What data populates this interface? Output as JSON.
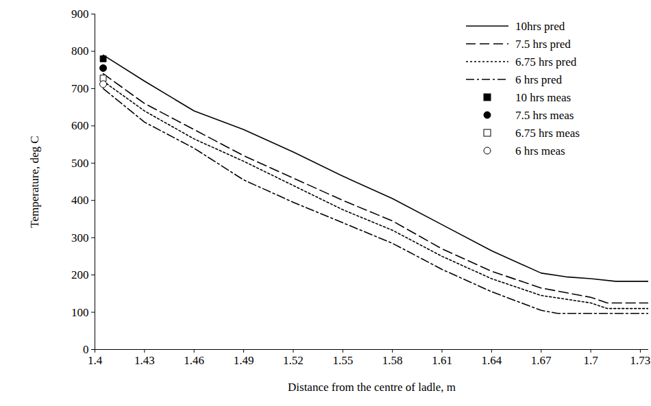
{
  "chart_data": {
    "type": "line",
    "x_label": "Distance from the centre of ladle, m",
    "y_label": "Temperature, deg C",
    "xlim": [
      1.4,
      1.735
    ],
    "xticks": [
      1.4,
      1.43,
      1.46,
      1.49,
      1.52,
      1.55,
      1.58,
      1.61,
      1.64,
      1.67,
      1.7,
      1.73
    ],
    "ylim": [
      0,
      900
    ],
    "yticks": [
      0,
      100,
      200,
      300,
      400,
      500,
      600,
      700,
      800,
      900
    ],
    "grid": false,
    "legend": "top-right",
    "series": [
      {
        "name": "10hrs pred",
        "type": "line",
        "color": "#000000",
        "line_style": "solid",
        "x": [
          1.405,
          1.43,
          1.46,
          1.49,
          1.52,
          1.55,
          1.58,
          1.61,
          1.64,
          1.67,
          1.685,
          1.7,
          1.715,
          1.735
        ],
        "values": [
          790,
          720,
          640,
          590,
          530,
          465,
          405,
          335,
          265,
          205,
          195,
          190,
          183,
          183
        ]
      },
      {
        "name": "7.5 hrs pred",
        "type": "line",
        "color": "#000000",
        "line_style": "dashed",
        "x": [
          1.405,
          1.43,
          1.46,
          1.49,
          1.52,
          1.55,
          1.58,
          1.61,
          1.64,
          1.67,
          1.7,
          1.71,
          1.735
        ],
        "values": [
          740,
          660,
          590,
          520,
          460,
          400,
          345,
          270,
          210,
          165,
          140,
          125,
          125
        ]
      },
      {
        "name": "6.75 hrs pred",
        "type": "line",
        "color": "#000000",
        "line_style": "dotted",
        "x": [
          1.405,
          1.43,
          1.46,
          1.49,
          1.52,
          1.55,
          1.58,
          1.61,
          1.64,
          1.67,
          1.7,
          1.71,
          1.735
        ],
        "values": [
          720,
          640,
          565,
          505,
          440,
          375,
          320,
          250,
          190,
          145,
          125,
          110,
          110
        ]
      },
      {
        "name": "6 hrs pred",
        "type": "line",
        "color": "#000000",
        "line_style": "dashdot",
        "x": [
          1.405,
          1.43,
          1.46,
          1.49,
          1.52,
          1.55,
          1.58,
          1.61,
          1.64,
          1.67,
          1.68,
          1.735
        ],
        "values": [
          700,
          610,
          540,
          455,
          395,
          340,
          285,
          215,
          155,
          105,
          97,
          97
        ]
      },
      {
        "name": "10 hrs meas",
        "type": "scatter",
        "color": "#000000",
        "marker": "square",
        "x": [
          1.405
        ],
        "values": [
          780
        ]
      },
      {
        "name": "7.5 hrs meas",
        "type": "scatter",
        "color": "#000000",
        "marker": "circle",
        "x": [
          1.405
        ],
        "values": [
          755
        ]
      },
      {
        "name": "6.75 hrs meas",
        "type": "scatter",
        "color": "#000000",
        "marker": "square-open",
        "x": [
          1.405
        ],
        "values": [
          728
        ]
      },
      {
        "name": "6 hrs meas",
        "type": "scatter",
        "color": "#000000",
        "marker": "circle-open",
        "x": [
          1.405
        ],
        "values": [
          712
        ]
      }
    ]
  }
}
